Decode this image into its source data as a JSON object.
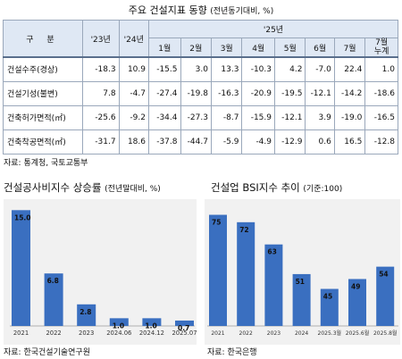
{
  "table": {
    "title": "주요 건설지표 동향",
    "subtitle": "(전년동기대비, %)",
    "header": {
      "gubun": "구 분",
      "y23": "'23년",
      "y24": "'24년",
      "y25": "'25년",
      "months": [
        "1월",
        "2월",
        "3월",
        "4월",
        "5월",
        "6월",
        "7월"
      ],
      "last_month_line1": "7월",
      "last_month_line2": "누계"
    },
    "rows": [
      {
        "label": "건설수주(경상)",
        "values": [
          "-18.3",
          "10.9",
          "-15.5",
          "3.0",
          "13.3",
          "-10.3",
          "4.2",
          "-7.0",
          "22.4",
          "1.0"
        ]
      },
      {
        "label": "건설기성(불변)",
        "values": [
          "7.8",
          "-4.7",
          "-27.4",
          "-19.8",
          "-16.3",
          "-20.9",
          "-19.5",
          "-12.1",
          "-14.2",
          "-18.6"
        ]
      },
      {
        "label": "건축허가면적(㎡)",
        "values": [
          "-25.6",
          "-9.2",
          "-34.4",
          "-27.3",
          "-8.7",
          "-15.9",
          "-12.1",
          "3.9",
          "-19.0",
          "-16.5"
        ]
      },
      {
        "label": "건축착공면적(㎡)",
        "values": [
          "-31.7",
          "18.6",
          "-37.8",
          "-44.7",
          "-5.9",
          "-4.9",
          "-12.9",
          "0.6",
          "16.5",
          "-12.8"
        ]
      }
    ],
    "source": "자료: 통계청, 국토교통부"
  },
  "left_panel": {
    "title": "건설공사비지수 상승률",
    "subtitle": "(전년말대비, %)",
    "source": "자료: 한국건설기술연구원"
  },
  "right_panel": {
    "title": "건설업 BSI지수 추이",
    "subtitle": "(기준:100)",
    "source": "자료: 한국은행"
  },
  "chart_data": [
    {
      "type": "bar",
      "title": "건설공사비지수 상승률",
      "categories": [
        "2021",
        "2022",
        "2023",
        "2024.06",
        "2024.12",
        "2025.07"
      ],
      "values": [
        15.0,
        6.8,
        2.8,
        1.0,
        1.0,
        0.7
      ],
      "labels": [
        "15.0",
        "6.8",
        "2.8",
        "1.0",
        "1.0",
        "0.7"
      ],
      "ylim": [
        0,
        15.5
      ],
      "color": "#3a6fc0"
    },
    {
      "type": "bar",
      "title": "건설업 BSI지수 추이",
      "categories": [
        "2021",
        "2022",
        "2023",
        "2024",
        "2025.3월",
        "2025.6월",
        "2025.8월"
      ],
      "values": [
        75,
        72,
        63,
        51,
        45,
        49,
        54
      ],
      "labels": [
        "75",
        "72",
        "63",
        "51",
        "45",
        "49",
        "54"
      ],
      "ylim": [
        30,
        77
      ],
      "color": "#3a6fc0"
    }
  ]
}
